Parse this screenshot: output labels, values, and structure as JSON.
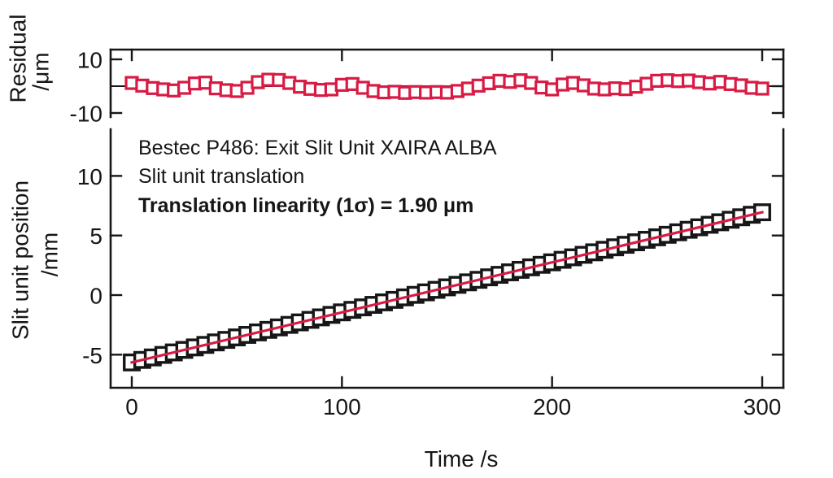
{
  "figure": {
    "background": "#ffffff",
    "ink_color": "#161616",
    "accent_red": "#d81b45"
  },
  "top_panel": {
    "ylabel_lines": [
      "Residual",
      "/μm"
    ],
    "yticks": [
      {
        "value": 10,
        "label": "10"
      },
      {
        "value": -10,
        "label": "-10"
      }
    ],
    "right_tick_values": [
      10,
      0,
      -10
    ],
    "zero_line_value": 0
  },
  "bottom_panel": {
    "ylabel_lines": [
      "Slit unit position",
      "/mm"
    ],
    "xlabel": "Time /s",
    "yticks": [
      {
        "value": 10,
        "label": "10"
      },
      {
        "value": 5,
        "label": "5"
      },
      {
        "value": 0,
        "label": "0"
      },
      {
        "value": -5,
        "label": "-5"
      }
    ],
    "xticks": [
      {
        "value": 0,
        "label": "0"
      },
      {
        "value": 100,
        "label": "100"
      },
      {
        "value": 200,
        "label": "200"
      },
      {
        "value": 300,
        "label": "300"
      }
    ],
    "annotations": [
      "Bestec P486: Exit Slit Unit XAIRA ALBA",
      "Slit unit translation",
      "Translation linearity (1σ) = 1.90 μm"
    ]
  },
  "chart_data": [
    {
      "type": "scatter",
      "name": "fit-residuals",
      "title": "Residual of linear fit",
      "xlabel": "Time /s",
      "ylabel": "Residual /μm",
      "marker": "open-square",
      "marker_color": "#d81b45",
      "xlim": [
        -10,
        310
      ],
      "ylim": [
        -12,
        14
      ],
      "grid": false,
      "x": [
        0,
        5,
        10,
        15,
        20,
        25,
        30,
        35,
        40,
        45,
        50,
        55,
        60,
        65,
        70,
        75,
        80,
        85,
        90,
        95,
        100,
        105,
        110,
        115,
        120,
        125,
        130,
        135,
        140,
        145,
        150,
        155,
        160,
        165,
        170,
        175,
        180,
        185,
        190,
        195,
        200,
        205,
        210,
        215,
        220,
        225,
        230,
        235,
        240,
        245,
        250,
        255,
        260,
        265,
        270,
        275,
        280,
        285,
        290,
        295,
        300
      ],
      "y": [
        1.2,
        0.2,
        -0.7,
        -1.2,
        -1.6,
        -0.6,
        1.0,
        1.3,
        -0.8,
        -1.5,
        -1.8,
        -0.6,
        1.5,
        2.4,
        2.3,
        1.2,
        -0.2,
        -1.0,
        -1.4,
        -1.2,
        0.5,
        0.8,
        -0.6,
        -1.8,
        -2.3,
        -2.1,
        -2.5,
        -2.2,
        -2.4,
        -2.2,
        -2.4,
        -1.8,
        -0.9,
        0.2,
        1.1,
        2.0,
        1.6,
        2.2,
        1.2,
        -0.5,
        -1.2,
        0.6,
        1.2,
        0.3,
        -0.9,
        -1.2,
        -0.8,
        -1.1,
        -0.2,
        0.9,
        2.0,
        2.2,
        1.9,
        2.1,
        1.5,
        1.0,
        1.6,
        0.8,
        0.3,
        -0.6,
        -0.9
      ]
    },
    {
      "type": "scatter",
      "name": "slit-unit-position",
      "title": "Bestec P486: Exit Slit Unit XAIRA ALBA — Slit unit translation",
      "xlabel": "Time /s",
      "ylabel": "Slit unit position /mm",
      "marker": "open-square",
      "marker_color": "#161616",
      "xlim": [
        -10,
        310
      ],
      "ylim": [
        -8,
        14
      ],
      "grid": false,
      "linearity_1sigma_um": 1.9,
      "x": [
        0,
        5,
        10,
        15,
        20,
        25,
        30,
        35,
        40,
        45,
        50,
        55,
        60,
        65,
        70,
        75,
        80,
        85,
        90,
        95,
        100,
        105,
        110,
        115,
        120,
        125,
        130,
        135,
        140,
        145,
        150,
        155,
        160,
        165,
        170,
        175,
        180,
        185,
        190,
        195,
        200,
        205,
        210,
        215,
        220,
        225,
        230,
        235,
        240,
        245,
        250,
        255,
        260,
        265,
        270,
        275,
        280,
        285,
        290,
        295,
        300
      ],
      "y": [
        -5.65,
        -5.44,
        -5.23,
        -5.02,
        -4.81,
        -4.6,
        -4.39,
        -4.18,
        -3.97,
        -3.76,
        -3.55,
        -3.34,
        -3.13,
        -2.92,
        -2.71,
        -2.5,
        -2.29,
        -2.08,
        -1.87,
        -1.66,
        -1.45,
        -1.24,
        -1.03,
        -0.82,
        -0.61,
        -0.4,
        -0.19,
        0.02,
        0.23,
        0.44,
        0.65,
        0.86,
        1.07,
        1.28,
        1.49,
        1.7,
        1.91,
        2.12,
        2.33,
        2.54,
        2.75,
        2.96,
        3.17,
        3.38,
        3.59,
        3.8,
        4.01,
        4.22,
        4.43,
        4.64,
        4.85,
        5.06,
        5.27,
        5.48,
        5.69,
        5.9,
        6.11,
        6.32,
        6.53,
        6.74,
        6.95
      ],
      "fit_line": {
        "color": "#d81b45",
        "x": [
          0,
          300
        ],
        "y": [
          -5.65,
          6.95
        ]
      }
    }
  ]
}
